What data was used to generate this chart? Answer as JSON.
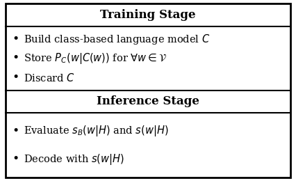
{
  "title_training": "Training Stage",
  "title_inference": "Inference Stage",
  "training_items": [
    "Build class-based language model $C$",
    "Store $P_C(w|C(w))$ for $\\forall w \\in \\mathcal{V}$",
    "Discard $C$"
  ],
  "inference_items": [
    "Evaluate $s_B(w|H)$ and $s(w|H)$",
    "Decode with $s(w|H)$"
  ],
  "bg_color": "#ffffff",
  "border_color": "#000000",
  "title_fontsize": 12,
  "item_fontsize": 10.5,
  "bullet": "•",
  "fig_width": 4.26,
  "fig_height": 2.6,
  "dpi": 100
}
